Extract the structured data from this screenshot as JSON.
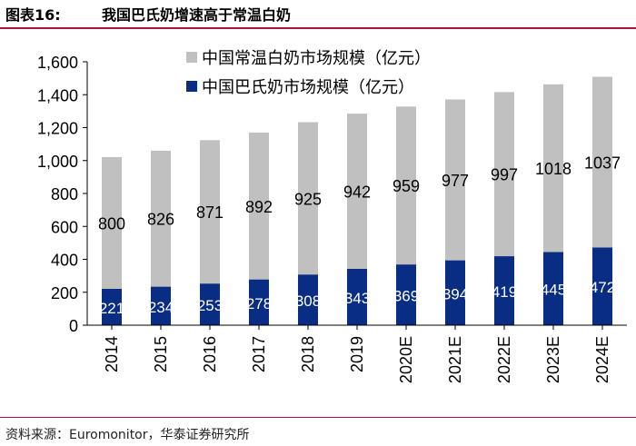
{
  "figure": {
    "label": "图表16:",
    "title": "我国巴氏奶增速高于常温白奶"
  },
  "source": "资料来源：Euromonitor，华泰证券研究所",
  "colors": {
    "ambient": "#c0c0c0",
    "pasteurized": "#0a2d84",
    "accent": "#a6163a"
  },
  "chart_data": {
    "type": "bar",
    "stacked": true,
    "categories": [
      "2014",
      "2015",
      "2016",
      "2017",
      "2018",
      "2019",
      "2020E",
      "2021E",
      "2022E",
      "2023E",
      "2024E"
    ],
    "series": [
      {
        "name": "中国巴氏奶市场规模（亿元）",
        "values": [
          221,
          234,
          253,
          278,
          308,
          343,
          369,
          394,
          419,
          445,
          472
        ]
      },
      {
        "name": "中国常温白奶市场规模（亿元）",
        "values": [
          800,
          826,
          871,
          892,
          925,
          942,
          959,
          977,
          997,
          1018,
          1037
        ]
      }
    ],
    "yticks": [
      "0",
      "200",
      "400",
      "600",
      "800",
      "1,000",
      "1,200",
      "1,400",
      "1,600"
    ],
    "ylim": [
      0,
      1600
    ],
    "legend_position": "top"
  }
}
